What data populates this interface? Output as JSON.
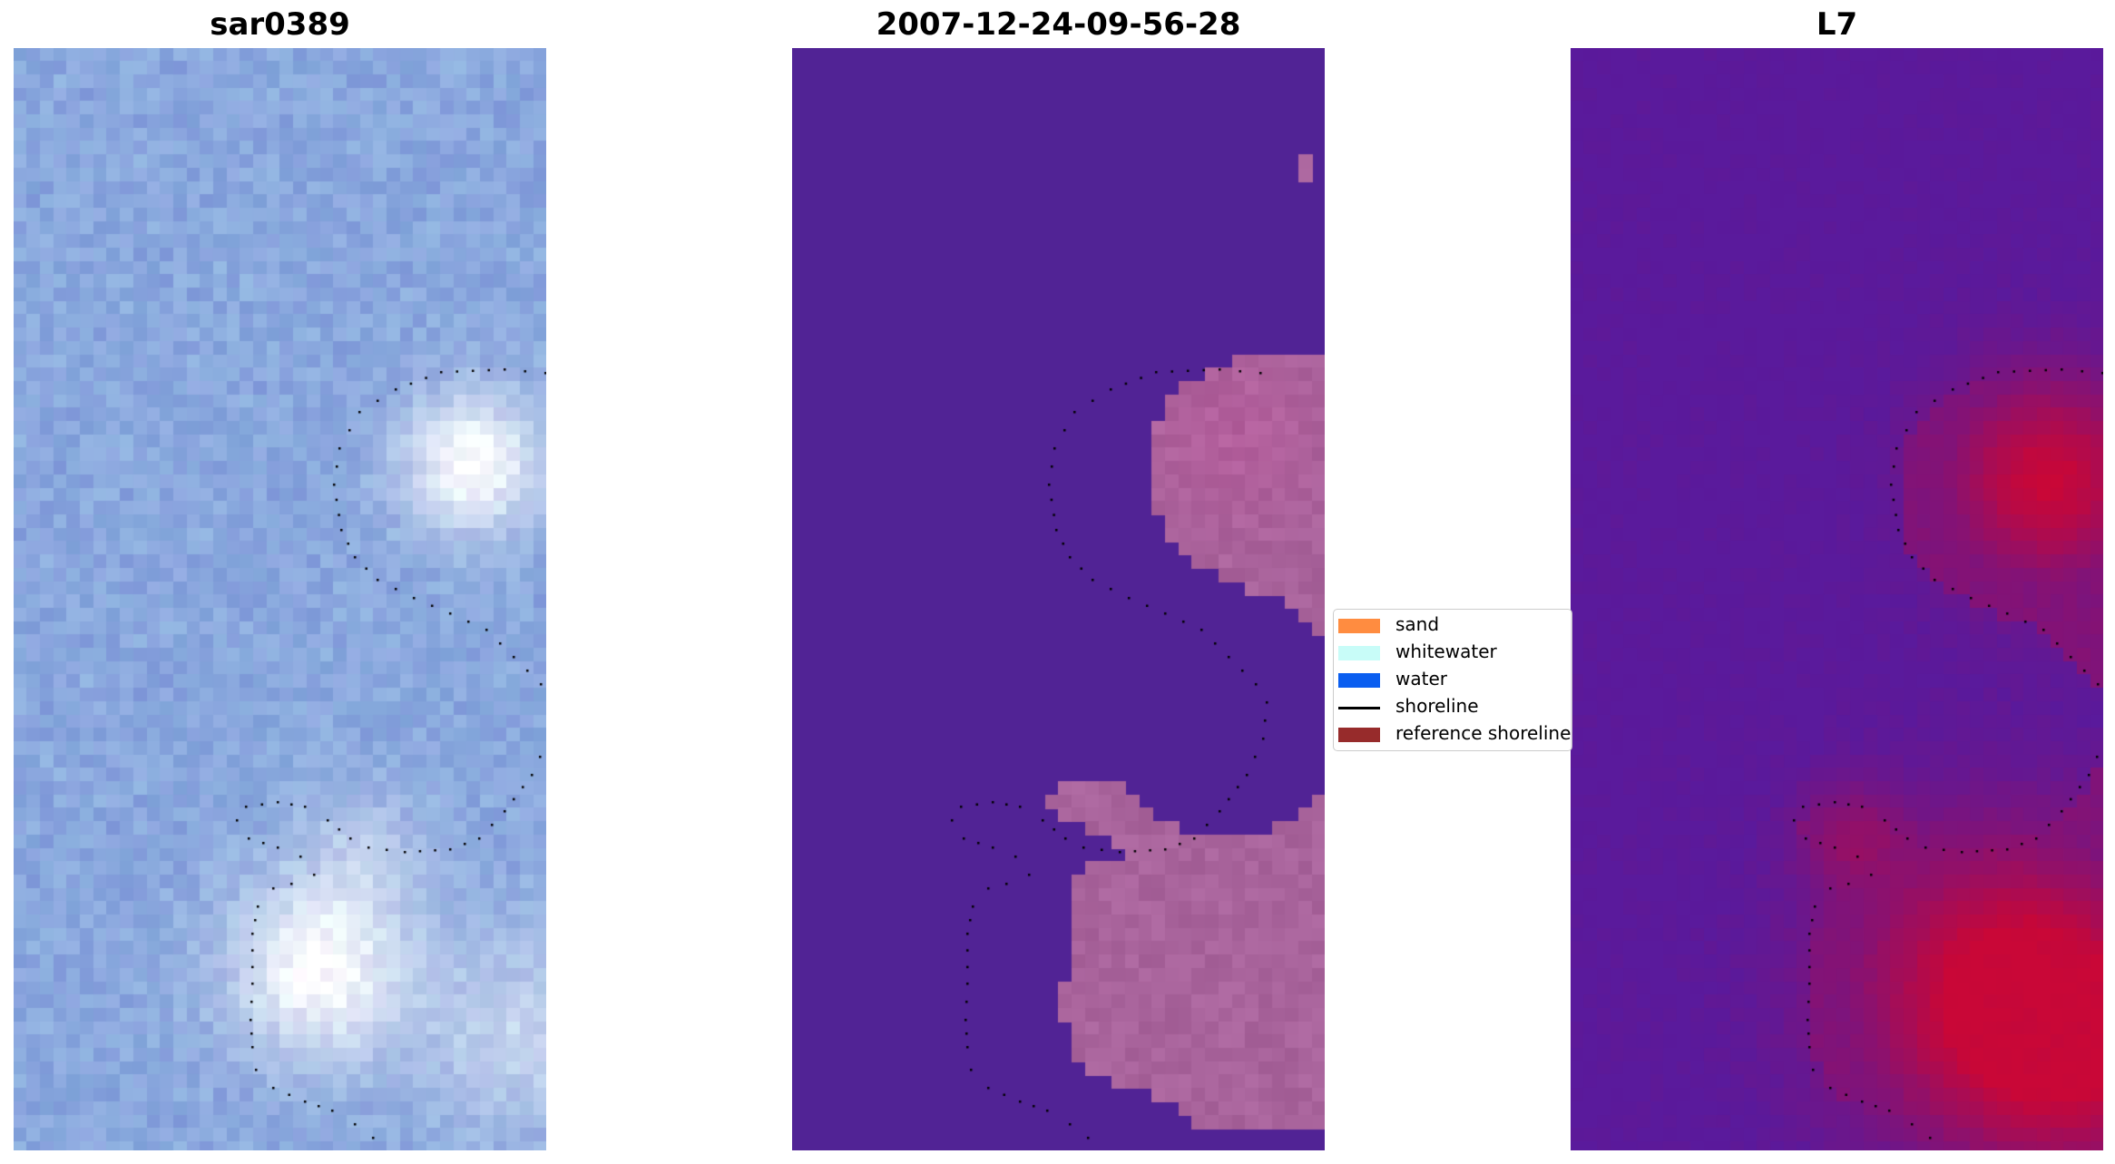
{
  "panels": [
    {
      "title": "sar0389",
      "palette": "rgb"
    },
    {
      "title": "2007-12-24-09-56-28",
      "palette": "classified"
    },
    {
      "title": "L7",
      "palette": "index"
    }
  ],
  "legend": {
    "items": [
      {
        "label": "sand",
        "kind": "patch",
        "color": "#ff8c40"
      },
      {
        "label": "whitewater",
        "kind": "patch",
        "color": "#c8fcf8"
      },
      {
        "label": "water",
        "kind": "patch",
        "color": "#0a5ef0"
      },
      {
        "label": "shoreline",
        "kind": "line",
        "color": "#000000"
      },
      {
        "label": "reference shoreline",
        "kind": "patch",
        "color": "#972b2b"
      }
    ]
  },
  "colors": {
    "water_mask": "#512395",
    "sand_overlay": "#a9649c",
    "index_low": "#5a1a9c",
    "index_high": "#c90737",
    "rgb_base": "#8aa8de"
  }
}
